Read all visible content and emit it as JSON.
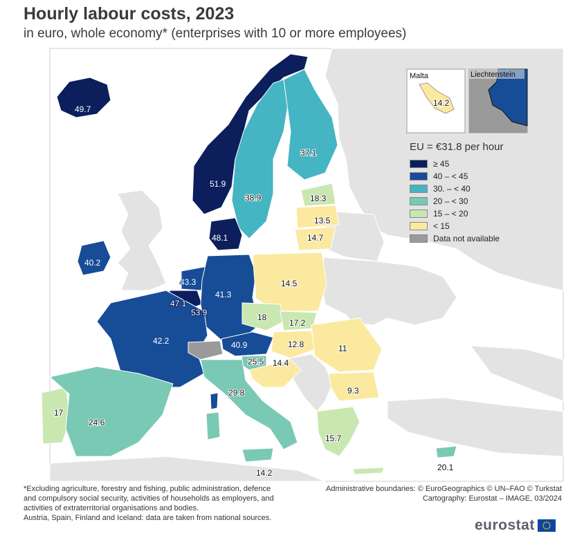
{
  "title": "Hourly labour costs, 2023",
  "subtitle": "in euro, whole economy* (enterprises with 10 or more employees)",
  "legend": {
    "title": "EU = €31.8 per hour",
    "classes": [
      {
        "label": "≥ 45",
        "color": "#0c1f5c"
      },
      {
        "label": "40 – < 45",
        "color": "#174c97"
      },
      {
        "label": "30. – < 40",
        "color": "#45b4c3"
      },
      {
        "label": "20 – < 30",
        "color": "#79c9b4"
      },
      {
        "label": "15 – < 20",
        "color": "#c9e8b1"
      },
      {
        "label": "< 15",
        "color": "#fbe9a0"
      },
      {
        "label": "Data not available",
        "color": "#9a9a9a"
      }
    ]
  },
  "insets": {
    "malta": {
      "name": "Malta",
      "value": "14.2"
    },
    "liechtenstein": {
      "name": "Liechtenstein"
    }
  },
  "countries": {
    "iceland": "49.7",
    "norway": "51.9",
    "sweden": "38.9",
    "finland": "37.1",
    "estonia": "18.3",
    "latvia": "13.5",
    "lithuania": "14.7",
    "denmark": "48.1",
    "ireland": "40.2",
    "netherlands": "43.3",
    "belgium": "47.1",
    "luxembourg": "53.9",
    "germany": "41.3",
    "poland": "14.5",
    "czechia": "18",
    "slovakia": "17.2",
    "austria": "40.9",
    "hungary": "12.8",
    "romania": "11",
    "france": "42.2",
    "slovenia": "25.5",
    "croatia": "14.4",
    "bulgaria": "9.3",
    "italy": "29.8",
    "portugal": "17",
    "spain": "24.6",
    "greece": "15.7",
    "malta_main": "14.2",
    "cyprus": "20.1"
  },
  "footnote_left": [
    "*Excluding agriculture, forestry and fishing, public administration, defence",
    "and compulsory social security, activities of households as employers, and",
    "activities of extraterritorial organisations and bodies.",
    "Austria, Spain, Finland and Iceland: data are taken from national sources."
  ],
  "footnote_right": [
    "Administrative boundaries: © EuroGeographics © UN–FAO © Turkstat",
    "Cartography: Eurostat – IMAGE, 03/2024"
  ],
  "brand": "eurostat"
}
